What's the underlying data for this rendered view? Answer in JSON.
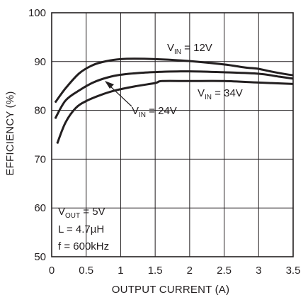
{
  "chart_data": {
    "type": "line",
    "xlabel": "OUTPUT CURRENT (A)",
    "ylabel": "EFFICIENCY (%)",
    "xlim": [
      0,
      3.5
    ],
    "ylim": [
      50,
      100
    ],
    "x_ticks": [
      "0",
      "0.5",
      "1",
      "1.5",
      "2",
      "2.5",
      "3",
      "3.5"
    ],
    "y_ticks": [
      "50",
      "60",
      "70",
      "80",
      "90",
      "100"
    ],
    "grid": true,
    "series": [
      {
        "name": "V_IN = 12V",
        "points": [
          [
            0.05,
            81.6
          ],
          [
            0.2,
            84.5
          ],
          [
            0.4,
            87.6
          ],
          [
            0.6,
            89.3
          ],
          [
            0.8,
            90.1
          ],
          [
            1.0,
            90.5
          ],
          [
            1.2,
            90.6
          ],
          [
            1.5,
            90.5
          ],
          [
            2.0,
            90.1
          ],
          [
            2.5,
            89.4
          ],
          [
            2.8,
            88.8
          ],
          [
            3.0,
            88.5
          ],
          [
            3.2,
            87.9
          ],
          [
            3.4,
            87.4
          ],
          [
            3.5,
            87.2
          ]
        ]
      },
      {
        "name": "V_IN = 24V",
        "points": [
          [
            0.05,
            78.3
          ],
          [
            0.2,
            82.0
          ],
          [
            0.4,
            84.1
          ],
          [
            0.6,
            85.7
          ],
          [
            0.8,
            86.7
          ],
          [
            1.0,
            87.3
          ],
          [
            1.3,
            87.7
          ],
          [
            1.6,
            87.9
          ],
          [
            2.0,
            88.0
          ],
          [
            2.5,
            87.8
          ],
          [
            3.0,
            87.5
          ],
          [
            3.3,
            86.9
          ],
          [
            3.5,
            86.5
          ]
        ]
      },
      {
        "name": "V_IN = 34V",
        "points": [
          [
            0.08,
            73.2
          ],
          [
            0.2,
            77.5
          ],
          [
            0.35,
            80.5
          ],
          [
            0.5,
            81.9
          ],
          [
            0.7,
            83.1
          ],
          [
            0.9,
            84.0
          ],
          [
            1.2,
            84.9
          ],
          [
            1.5,
            85.6
          ],
          [
            1.6,
            86.0
          ],
          [
            2.0,
            86.0
          ],
          [
            2.5,
            86.0
          ],
          [
            3.0,
            85.7
          ],
          [
            3.5,
            85.4
          ]
        ]
      }
    ],
    "annotations": {
      "vin12": {
        "main": "V",
        "sub": "IN",
        "rest": " = 12V"
      },
      "vin24": {
        "main": "V",
        "sub": "IN",
        "rest": " = 24V"
      },
      "vin34": {
        "main": "V",
        "sub": "IN",
        "rest": " = 34V"
      },
      "conditions": {
        "vout_main": "V",
        "vout_sub": "OUT",
        "vout_rest": " = 5V",
        "inductance": "L = 4.7µH",
        "frequency": "f = 600kHz"
      }
    },
    "line_color": "#231f20"
  }
}
